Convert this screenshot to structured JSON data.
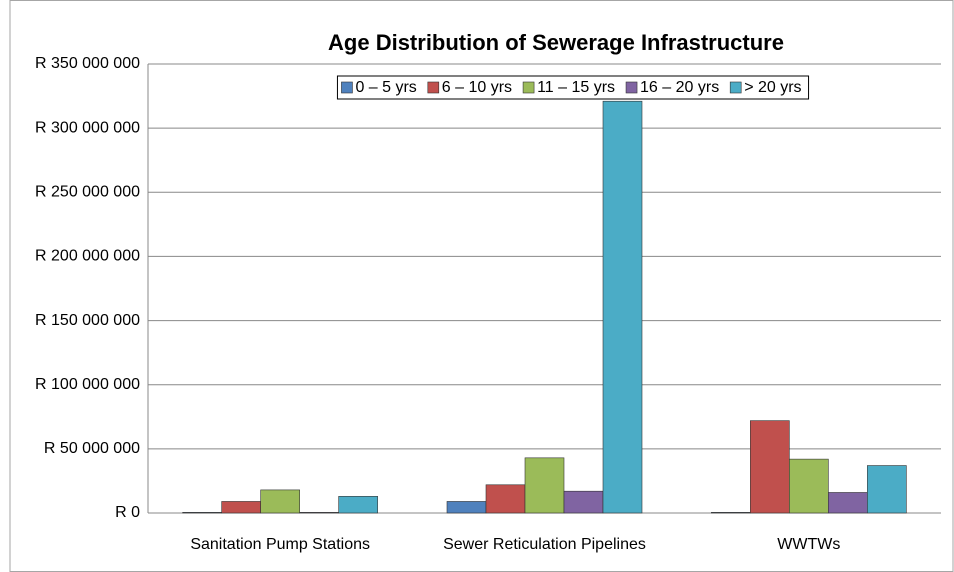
{
  "chart_data": {
    "type": "bar",
    "title": "Age Distribution of Sewerage Infrastructure",
    "categories": [
      "Sanitation Pump Stations",
      "Sewer Reticulation Pipelines",
      "WWTWs"
    ],
    "series": [
      {
        "name": "0 – 5 yrs",
        "color": "#4f81bd",
        "values": [
          500000,
          9000000,
          500000
        ]
      },
      {
        "name": "6 – 10 yrs",
        "color": "#c0504d",
        "values": [
          9000000,
          22000000,
          72000000
        ]
      },
      {
        "name": "11 – 15 yrs",
        "color": "#9bbb59",
        "values": [
          18000000,
          43000000,
          42000000
        ]
      },
      {
        "name": "16 – 20 yrs",
        "color": "#8064a2",
        "values": [
          500000,
          17000000,
          16000000
        ]
      },
      {
        "name": "> 20 yrs",
        "color": "#4bacc6",
        "values": [
          13000000,
          321000000,
          37000000
        ]
      }
    ],
    "ylim": [
      0,
      350000000
    ],
    "yticks": [
      {
        "value": 0,
        "label": "R 0"
      },
      {
        "value": 50000000,
        "label": "R 50 000 000"
      },
      {
        "value": 100000000,
        "label": "R 100 000 000"
      },
      {
        "value": 150000000,
        "label": "R 150 000 000"
      },
      {
        "value": 200000000,
        "label": "R 200 000 000"
      },
      {
        "value": 250000000,
        "label": "R 250 000 000"
      },
      {
        "value": 300000000,
        "label": "R 300 000 000"
      },
      {
        "value": 350000000,
        "label": "R 350 000 000"
      }
    ],
    "grid": true,
    "legend": "top"
  }
}
